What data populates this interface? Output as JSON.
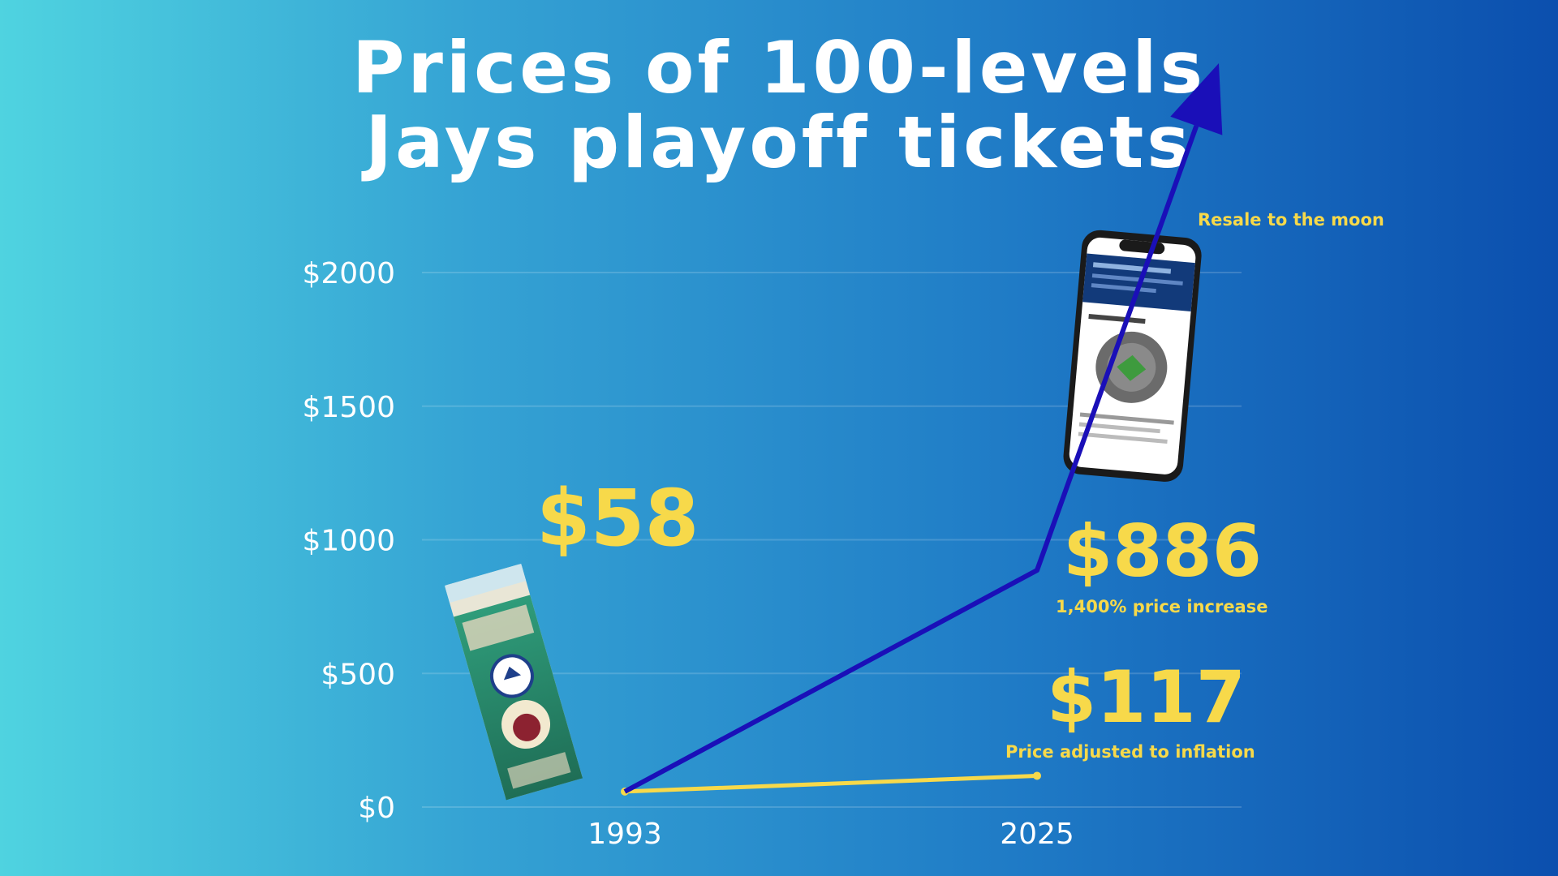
{
  "title": {
    "line1": "Prices of 100-levels",
    "line2": "Jays playoff tickets"
  },
  "colors": {
    "background_left": "#4fd3e0",
    "background_right": "#0b4fae",
    "resale_line": "#1a0fb8",
    "inflation_line": "#f7d94a",
    "annotation_text": "#f7d94a"
  },
  "images": {
    "ticket": "vintage-1993-jays-ticket-image",
    "phone": "phone-resale-listing-screenshot"
  },
  "chart_data": {
    "type": "line",
    "title": "Prices of 100-levels Jays playoff tickets",
    "x": [
      1993,
      2025
    ],
    "x_tick_labels": [
      "1993",
      "2025"
    ],
    "y_tick_labels": [
      "$0",
      "$500",
      "$1000",
      "$1500",
      "$2000"
    ],
    "y_ticks": [
      0,
      500,
      1000,
      1500,
      2000
    ],
    "ylim": [
      0,
      2000
    ],
    "grid": true,
    "series": [
      {
        "values": [
          58,
          886
        ],
        "continues_beyond_axis": true
      },
      {
        "values": [
          58,
          117
        ]
      }
    ],
    "annotations": {
      "price_1993": "$58",
      "price_2025_resale": "$886",
      "resale_increase": "1,400% price increase",
      "price_2025_inflation": "$117",
      "inflation_note": "Price adjusted to inflation",
      "arrow_note": "Resale to the moon"
    }
  }
}
